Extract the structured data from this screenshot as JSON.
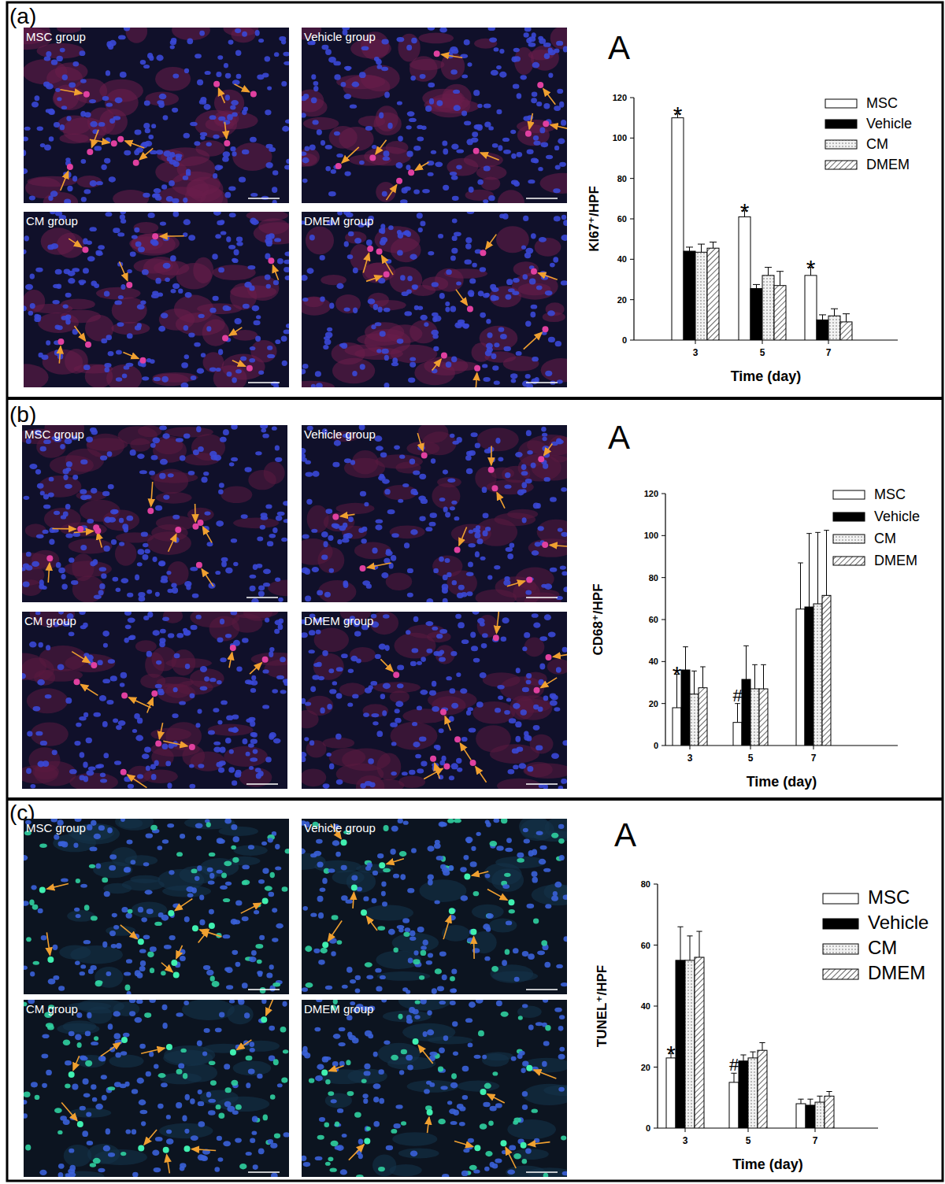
{
  "chart_data": [
    {
      "type": "bar",
      "panel_label": "(a)",
      "image_labels": [
        "MSC group",
        "Vehicle group",
        "CM group",
        "DMEM group"
      ],
      "title": "A",
      "y_label": "KI67⁺/HPF",
      "x_label": "Time (day)",
      "categories": [
        "3",
        "5",
        "7"
      ],
      "series": [
        {
          "name": "MSC",
          "color": "#ffffff",
          "values": [
            110,
            61,
            32
          ],
          "errors": [
            2,
            3,
            4
          ]
        },
        {
          "name": "Vehicle",
          "color": "#000000",
          "values": [
            44,
            25.5,
            10
          ],
          "errors": [
            2,
            2,
            2.5
          ]
        },
        {
          "name": "CM",
          "color": "#f2f2f2",
          "values": [
            43.5,
            32,
            12
          ],
          "errors": [
            4,
            4,
            3.5
          ]
        },
        {
          "name": "DMEM",
          "color": "#ffffff",
          "values": [
            45.5,
            27,
            9
          ],
          "errors": [
            3,
            7,
            4
          ]
        }
      ],
      "ylim": [
        0,
        120
      ],
      "yticks": [
        0,
        20,
        40,
        60,
        80,
        100,
        120
      ],
      "legend": "top-right",
      "annotations": [
        {
          "text": "*",
          "x": "3",
          "series": "MSC"
        },
        {
          "text": "*",
          "x": "5",
          "series": "MSC"
        },
        {
          "text": "*",
          "x": "7",
          "series": "MSC"
        }
      ]
    },
    {
      "type": "bar",
      "panel_label": "(b)",
      "image_labels": [
        "MSC group",
        "Vehicle group",
        "CM group",
        "DMEM group"
      ],
      "title": "A",
      "y_label": "CD68⁺/HPF",
      "x_label": "Time (day)",
      "categories": [
        "3",
        "5",
        "7"
      ],
      "series": [
        {
          "name": "MSC",
          "color": "#ffffff",
          "values": [
            18,
            11,
            65
          ],
          "errors": [
            16,
            9,
            22
          ]
        },
        {
          "name": "Vehicle",
          "color": "#000000",
          "values": [
            36,
            31.5,
            66
          ],
          "errors": [
            11,
            16,
            35
          ]
        },
        {
          "name": "CM",
          "color": "#f2f2f2",
          "values": [
            24.5,
            27,
            67.5
          ],
          "errors": [
            11,
            11.5,
            34
          ]
        },
        {
          "name": "DMEM",
          "color": "#ffffff",
          "values": [
            27.5,
            27,
            71.5
          ],
          "errors": [
            10,
            11.5,
            31
          ]
        }
      ],
      "ylim": [
        0,
        120
      ],
      "yticks": [
        0,
        20,
        40,
        60,
        80,
        100,
        120
      ],
      "legend": "top-right",
      "annotations": [
        {
          "text": "*",
          "x": "3",
          "series": "MSC"
        },
        {
          "text": "#",
          "x": "5",
          "series": "MSC"
        }
      ]
    },
    {
      "type": "bar",
      "panel_label": "(c)",
      "image_labels": [
        "MSC group",
        "Vehicle group",
        "CM group",
        "DMEM group"
      ],
      "title": "A",
      "y_label": "TUNEL⁺/HPF",
      "x_label": "Time (day)",
      "categories": [
        "3",
        "5",
        "7"
      ],
      "series": [
        {
          "name": "MSC",
          "color": "#ffffff",
          "values": [
            23,
            15,
            8
          ],
          "errors": [
            1.5,
            3,
            1.5
          ]
        },
        {
          "name": "Vehicle",
          "color": "#000000",
          "values": [
            55,
            22,
            7.5
          ],
          "errors": [
            11,
            2,
            2
          ]
        },
        {
          "name": "CM",
          "color": "#f2f2f2",
          "values": [
            55,
            23,
            8.5
          ],
          "errors": [
            8,
            2,
            2
          ]
        },
        {
          "name": "DMEM",
          "color": "#ffffff",
          "values": [
            56,
            25.5,
            10.5
          ],
          "errors": [
            8.5,
            2.5,
            1.5
          ]
        }
      ],
      "ylim": [
        0,
        80
      ],
      "yticks": [
        0,
        20,
        40,
        60,
        80
      ],
      "legend": "top-right",
      "annotations": [
        {
          "text": "*",
          "x": "3",
          "series": "MSC"
        },
        {
          "text": "#",
          "x": "5",
          "series": "MSC"
        }
      ]
    }
  ]
}
